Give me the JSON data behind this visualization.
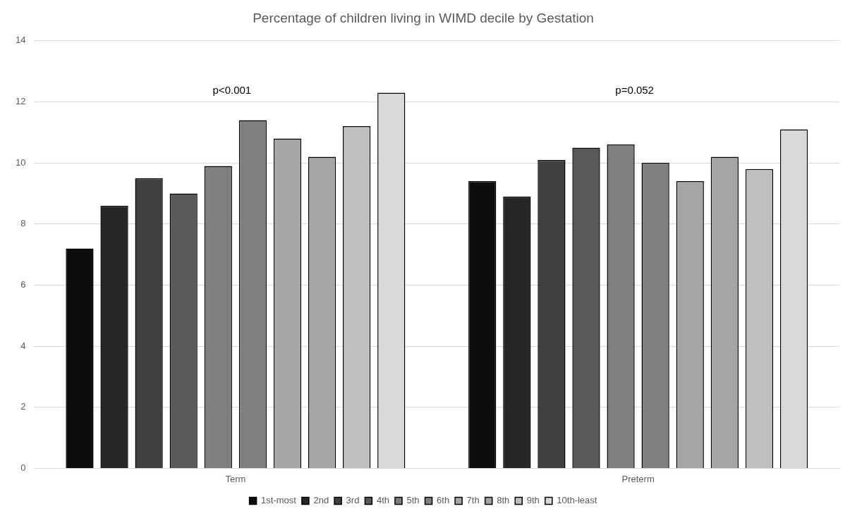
{
  "chart_data": {
    "type": "bar",
    "title": "Percentage of children living in WIMD decile by Gestation",
    "categories": [
      "Term",
      "Preterm"
    ],
    "series": [
      {
        "name": "1st-most",
        "color": "#0d0d0d",
        "values": [
          7.2,
          9.4
        ]
      },
      {
        "name": "2nd",
        "color": "#262626",
        "values": [
          8.6,
          8.9
        ]
      },
      {
        "name": "3rd",
        "color": "#404040",
        "values": [
          9.5,
          10.1
        ]
      },
      {
        "name": "4th",
        "color": "#595959",
        "values": [
          9.0,
          10.5
        ]
      },
      {
        "name": "5th",
        "color": "#7f7f7f",
        "values": [
          9.9,
          10.6
        ]
      },
      {
        "name": "6th",
        "color": "#808080",
        "values": [
          11.4,
          10.0
        ]
      },
      {
        "name": "7th",
        "color": "#a6a6a6",
        "values": [
          10.8,
          9.4
        ]
      },
      {
        "name": "8th",
        "color": "#a5a5a5",
        "values": [
          10.2,
          10.2
        ]
      },
      {
        "name": "9th",
        "color": "#bfbfbf",
        "values": [
          11.2,
          9.8
        ]
      },
      {
        "name": "10th-least",
        "color": "#d9d9d9",
        "values": [
          12.3,
          11.1
        ]
      }
    ],
    "ylim": [
      0,
      14
    ],
    "yticks": [
      0,
      2,
      4,
      6,
      8,
      10,
      12,
      14
    ],
    "grid": "y",
    "legend": "bottom",
    "annotations": [
      "p<0.001",
      "p=0.052"
    ]
  }
}
